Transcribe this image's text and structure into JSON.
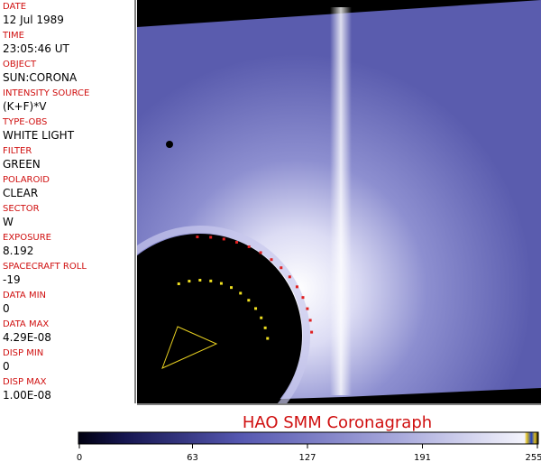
{
  "fields": [
    {
      "label": "DATE",
      "value": "12 Jul 1989"
    },
    {
      "label": "TIME",
      "value": "23:05:46 UT"
    },
    {
      "label": "OBJECT",
      "value": "SUN:CORONA"
    },
    {
      "label": "INTENSITY SOURCE",
      "value": "(K+F)*V"
    },
    {
      "label": "TYPE-OBS",
      "value": "WHITE LIGHT"
    },
    {
      "label": "FILTER",
      "value": "GREEN"
    },
    {
      "label": "POLAROID",
      "value": "CLEAR"
    },
    {
      "label": "SECTOR",
      "value": "W"
    },
    {
      "label": "EXPOSURE",
      "value": "8.192"
    },
    {
      "label": "SPACECRAFT ROLL",
      "value": "-19"
    },
    {
      "label": "DATA MIN",
      "value": "0"
    },
    {
      "label": "DATA MAX",
      "value": "4.29E-08"
    },
    {
      "label": "DISP MIN",
      "value": "0"
    },
    {
      "label": "DISP MAX",
      "value": "1.00E-08"
    }
  ],
  "title": "HAO   SMM Coronagraph",
  "colorbar": {
    "range": [
      0,
      255
    ],
    "ticks": [
      0,
      63,
      127,
      191,
      255
    ]
  }
}
